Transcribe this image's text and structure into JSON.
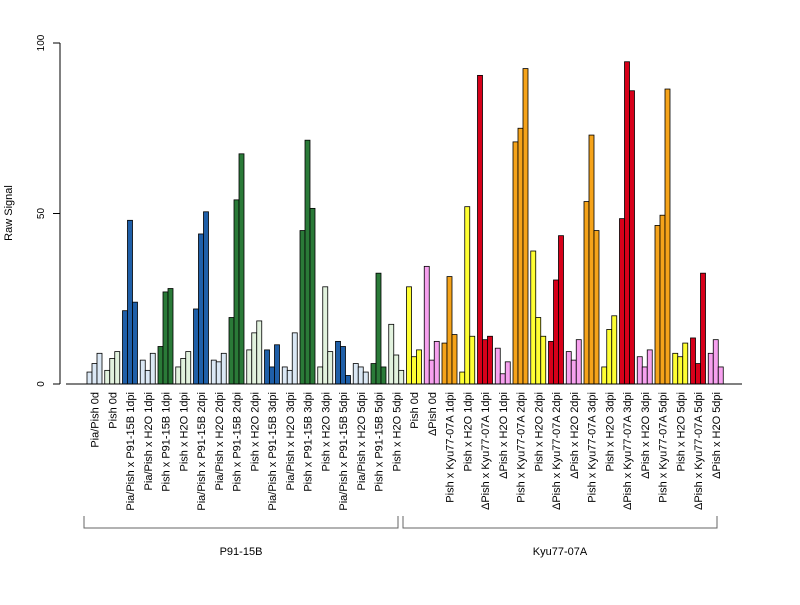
{
  "chart_data": {
    "type": "bar",
    "ylabel": "Raw Signal",
    "ylim": [
      0,
      100
    ],
    "yticks": [
      0,
      50,
      100
    ],
    "categories": [
      "Pia/Pish 0d",
      "Pish 0d",
      "Pia/Pish x P91-15B 1dpi",
      "Pia/Pish x H2O 1dpi",
      "Pish x P91-15B 1dpi",
      "Pish x H2O 1dpi",
      "Pia/Pish x P91-15B 2dpi",
      "Pia/Pish x H2O 2dpi",
      "Pish x P91-15B 2dpi",
      "Pish x H2O 2dpi",
      "Pia/Pish x P91-15B 3dpi",
      "Pia/Pish x H2O 3dpi",
      "Pish x P91-15B 3dpi",
      "Pish x H2O 3dpi",
      "Pia/Pish x P91-15B 5dpi",
      "Pia/Pish x H2O 5dpi",
      "Pish x P91-15B 5dpi",
      "Pish x H2O 5dpi",
      "Pish 0d",
      "ΔPish 0d",
      "Pish x Kyu77-07A 1dpi",
      "Pish x H2O 1dpi",
      "ΔPish x Kyu77-07A 1dpi",
      "ΔPish x H2O 1dpi",
      "Pish x Kyu77-07A 2dpi",
      "Pish x H2O 2dpi",
      "ΔPish x Kyu77-07A 2dpi",
      "ΔPish x H2O 2dpi",
      "Pish x Kyu77-07A 3dpi",
      "Pish x H2O 3dpi",
      "ΔPish x Kyu77-07A 3dpi",
      "ΔPish x H2O 3dpi",
      "Pish x Kyu77-07A 5dpi",
      "Pish x H2O 5dpi",
      "ΔPish x Kyu77-07A 5dpi",
      "ΔPish x H2O 5dpi"
    ],
    "colors": [
      "#dbe8f5",
      "#e2f2de",
      "#1f5fa8",
      "#dbe8f5",
      "#2a7a38",
      "#e2f2de",
      "#1f5fa8",
      "#dbe8f5",
      "#2a7a38",
      "#e2f2de",
      "#1f5fa8",
      "#dbe8f5",
      "#2a7a38",
      "#e2f2de",
      "#1f5fa8",
      "#dbe8f5",
      "#2a7a38",
      "#e2f2de",
      "#ffff33",
      "#f7a1ef",
      "#f5a31a",
      "#ffff33",
      "#d7001a",
      "#f7a1ef",
      "#f5a31a",
      "#ffff33",
      "#d7001a",
      "#f7a1ef",
      "#f5a31a",
      "#ffff33",
      "#d7001a",
      "#f7a1ef",
      "#f5a31a",
      "#ffff33",
      "#d7001a",
      "#f7a1ef"
    ],
    "values": [
      [
        3.5,
        6,
        9
      ],
      [
        4,
        7.5,
        9.5
      ],
      [
        21.5,
        48,
        24
      ],
      [
        7,
        4,
        9
      ],
      [
        11,
        27,
        28
      ],
      [
        5,
        7.5,
        9.5
      ],
      [
        22,
        44,
        50.5
      ],
      [
        7,
        6.5,
        9
      ],
      [
        19.5,
        54,
        67.5
      ],
      [
        10,
        15,
        18.5
      ],
      [
        10,
        5,
        11.5
      ],
      [
        5,
        4,
        15
      ],
      [
        45,
        71.5,
        51.5
      ],
      [
        5,
        28.5,
        9.5
      ],
      [
        12.5,
        11,
        2.5
      ],
      [
        6,
        5,
        3.5
      ],
      [
        6,
        32.5,
        5
      ],
      [
        17.5,
        8.5,
        4
      ],
      [
        28.5,
        8,
        10
      ],
      [
        34.5,
        7,
        12.5
      ],
      [
        12,
        31.5,
        14.5
      ],
      [
        3.5,
        52,
        14
      ],
      [
        90.5,
        13,
        14
      ],
      [
        10.5,
        3,
        6.5
      ],
      [
        71,
        75,
        92.5
      ],
      [
        39,
        19.5,
        14
      ],
      [
        12.5,
        30.5,
        43.5
      ],
      [
        9.5,
        7,
        13
      ],
      [
        53.5,
        73,
        45
      ],
      [
        5,
        16,
        20
      ],
      [
        48.5,
        94.5,
        86
      ],
      [
        8,
        5,
        10
      ],
      [
        46.5,
        49.5,
        86.5
      ],
      [
        9,
        8,
        12
      ],
      [
        13.5,
        6,
        32.5
      ],
      [
        9,
        13,
        5
      ]
    ],
    "groups": [
      {
        "label": "P91-15B",
        "from": 0,
        "to": 17
      },
      {
        "label": "Kyu77-07A",
        "from": 18,
        "to": 35
      }
    ],
    "grid": false,
    "legend": "none"
  }
}
